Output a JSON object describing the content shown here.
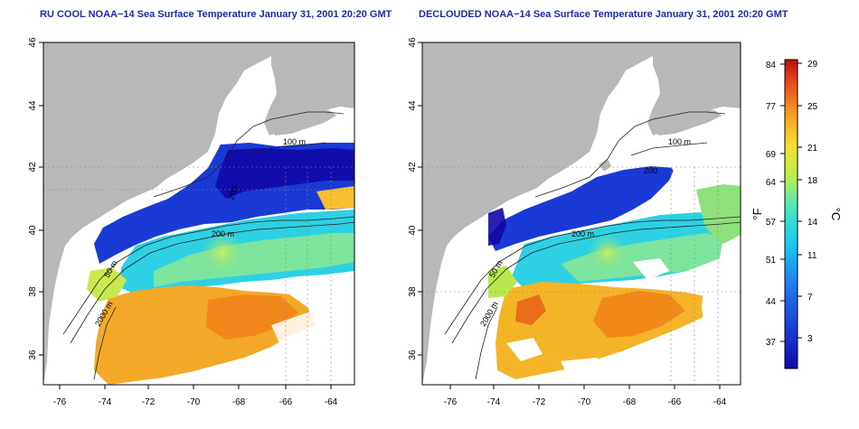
{
  "panels": [
    {
      "title": "RU COOL NOAA−14 Sea Surface Temperature January 31, 2001 20:20 GMT",
      "x_ticks": [
        "-76",
        "-74",
        "-72",
        "-70",
        "-68",
        "-66",
        "-64"
      ],
      "y_ticks": [
        "46",
        "44",
        "42",
        "40",
        "38",
        "36"
      ],
      "contour_labels": [
        "100 m",
        "200 m",
        "50 m",
        "2000 m",
        "200"
      ]
    },
    {
      "title": "DECLOUDED NOAA−14 Sea Surface Temperature January 31, 2001 20:20 GMT",
      "x_ticks": [
        "-76",
        "-74",
        "-72",
        "-70",
        "-68",
        "-66",
        "-64"
      ],
      "y_ticks": [
        "46",
        "44",
        "42",
        "40",
        "38",
        "36"
      ],
      "contour_labels": [
        "100 m",
        "200 m",
        "50 m",
        "2000 m",
        "200"
      ]
    }
  ],
  "colorbar": {
    "unit_left": "°F",
    "unit_right": "°C",
    "f_ticks": [
      "84",
      "77",
      "69",
      "64",
      "57",
      "51",
      "44",
      "37"
    ],
    "c_ticks": [
      "29",
      "25",
      "21",
      "18",
      "14",
      "11",
      "7",
      "3"
    ],
    "colors": [
      "#1208a8",
      "#1a3ad6",
      "#1f7ff0",
      "#18c8f0",
      "#4ae8c0",
      "#b8ee50",
      "#f4e030",
      "#f8a020",
      "#e85018",
      "#b81010"
    ]
  },
  "colors": {
    "land": "#b8b8b8",
    "title": "#1a2bb0"
  }
}
